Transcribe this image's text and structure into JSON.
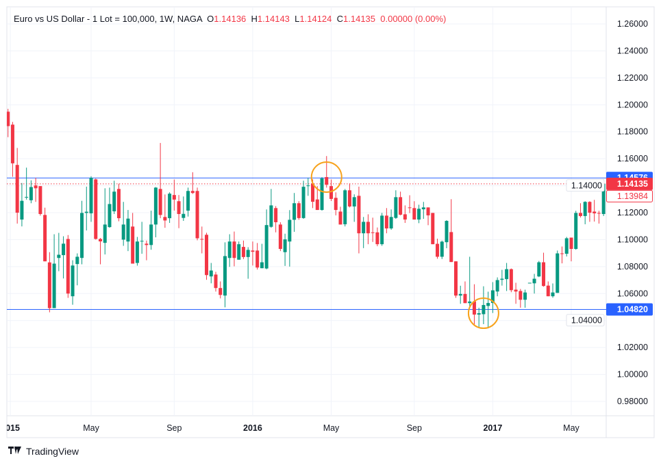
{
  "legend": {
    "title": "Euro vs US Dollar - 1 Lot = 100,000, 1W, NAGA",
    "o_label": "O",
    "o": "1.14136",
    "h_label": "H",
    "h": "1.14143",
    "l_label": "L",
    "l": "1.14124",
    "c_label": "C",
    "c": "1.14135",
    "change": "0.00000 (0.00%)"
  },
  "branding": {
    "logo_text": "TradingView"
  },
  "colors": {
    "up": "#089981",
    "down": "#f23645",
    "level_line": "#2962ff",
    "highlight_circle": "#f7a21b",
    "last_price": "#f23645"
  },
  "chart_data": {
    "type": "candlestick",
    "title": "Euro vs US Dollar - 1 Lot = 100,000, 1W, NAGA",
    "interval": "1W",
    "ylim": [
      0.97,
      1.27
    ],
    "y_ticks": [
      "1.26000",
      "1.24000",
      "1.22000",
      "1.20000",
      "1.18000",
      "1.16000",
      "1.14000",
      "1.12000",
      "1.10000",
      "1.08000",
      "1.06000",
      "1.04000",
      "1.02000",
      "1.00000",
      "0.98000"
    ],
    "x_ticks": [
      "2015",
      "May",
      "Sep",
      "2016",
      "May",
      "Sep",
      "2017",
      "May"
    ],
    "grid": true,
    "horizontal_levels": [
      {
        "value": 1.14576,
        "label": "1.14576"
      },
      {
        "value": 1.0482,
        "label": "1.04820"
      }
    ],
    "last_price": {
      "value": 1.14135,
      "label": "1.14135"
    },
    "secondary_price": {
      "value": 1.13984,
      "label": "1.13984"
    },
    "highlights": [
      {
        "candle": 69,
        "value": 1.1464
      },
      {
        "candle": 103,
        "value": 1.0454
      }
    ],
    "ohlc": [
      [
        1.1949,
        1.197,
        1.176,
        1.1842
      ],
      [
        1.1853,
        1.1873,
        1.1466,
        1.1566
      ],
      [
        1.1554,
        1.168,
        1.1119,
        1.12
      ],
      [
        1.1149,
        1.142,
        1.1098,
        1.1288
      ],
      [
        1.1315,
        1.1534,
        1.1297,
        1.1317
      ],
      [
        1.1292,
        1.144,
        1.127,
        1.139
      ],
      [
        1.1402,
        1.1458,
        1.128,
        1.1381
      ],
      [
        1.1397,
        1.1397,
        1.1178,
        1.119
      ],
      [
        1.1183,
        1.1237,
        1.0839,
        1.0839
      ],
      [
        1.0831,
        1.0907,
        1.0461,
        1.0492
      ],
      [
        1.0492,
        1.104,
        1.0492,
        1.0822
      ],
      [
        1.0864,
        1.105,
        1.0766,
        1.0888
      ],
      [
        1.0885,
        1.1025,
        1.0712,
        1.097
      ],
      [
        1.1005,
        1.1034,
        1.0568,
        1.06
      ],
      [
        1.058,
        1.0847,
        1.0517,
        1.0808
      ],
      [
        1.0819,
        1.0898,
        1.0661,
        1.0873
      ],
      [
        1.0864,
        1.1288,
        1.0817,
        1.1198
      ],
      [
        1.1198,
        1.1393,
        1.1068,
        1.1207
      ],
      [
        1.1195,
        1.147,
        1.1132,
        1.1458
      ],
      [
        1.1447,
        1.1453,
        1.1,
        1.1005
      ],
      [
        1.1005,
        1.1012,
        1.0817,
        1.0987
      ],
      [
        1.0976,
        1.1381,
        1.089,
        1.1112
      ],
      [
        1.1093,
        1.1386,
        1.1088,
        1.1264
      ],
      [
        1.121,
        1.1437,
        1.119,
        1.1356
      ],
      [
        1.1376,
        1.1415,
        1.1136,
        1.1159
      ],
      [
        1.1,
        1.128,
        1.0954,
        1.1112
      ],
      [
        1.0986,
        1.122,
        1.0915,
        1.1156
      ],
      [
        1.1097,
        1.1198,
        1.0822,
        1.0822
      ],
      [
        1.0827,
        1.102,
        1.0807,
        1.0986
      ],
      [
        1.0986,
        1.1132,
        1.0895,
        1.0991
      ],
      [
        1.097,
        1.0993,
        1.0847,
        1.096
      ],
      [
        1.096,
        1.1215,
        1.0925,
        1.1112
      ],
      [
        1.1112,
        1.139,
        1.1017,
        1.1386
      ],
      [
        1.1376,
        1.1717,
        1.1159,
        1.1183
      ],
      [
        1.1168,
        1.1335,
        1.1088,
        1.1142
      ],
      [
        1.1159,
        1.1351,
        1.1124,
        1.1341
      ],
      [
        1.1331,
        1.1446,
        1.1215,
        1.1297
      ],
      [
        1.1285,
        1.1331,
        1.1085,
        1.119
      ],
      [
        1.1161,
        1.132,
        1.1139,
        1.1191
      ],
      [
        1.1215,
        1.1386,
        1.1171,
        1.1361
      ],
      [
        1.1361,
        1.15,
        1.1339,
        1.1346
      ],
      [
        1.1361,
        1.1386,
        1.0995,
        1.101
      ],
      [
        1.1005,
        1.1097,
        1.0898,
        1.1003
      ],
      [
        1.1036,
        1.1051,
        1.0702,
        1.0737
      ],
      [
        1.0727,
        1.0827,
        1.0676,
        1.0771
      ],
      [
        1.0741,
        1.0761,
        1.0615,
        1.0641
      ],
      [
        1.0641,
        1.069,
        1.0564,
        1.059
      ],
      [
        1.0585,
        1.098,
        1.0498,
        1.0878
      ],
      [
        1.0864,
        1.104,
        1.0798,
        1.0986
      ],
      [
        1.0986,
        1.106,
        1.0802,
        1.0864
      ],
      [
        1.0851,
        1.0986,
        1.0851,
        1.0966
      ],
      [
        1.0946,
        1.0993,
        1.0856,
        1.0871
      ],
      [
        1.0871,
        1.0944,
        1.071,
        1.0924
      ],
      [
        1.0919,
        1.0986,
        1.0808,
        1.091
      ],
      [
        1.0919,
        1.0975,
        1.0778,
        1.0793
      ],
      [
        1.0788,
        1.0969,
        1.0788,
        1.0832
      ],
      [
        1.0786,
        1.1224,
        1.078,
        1.1108
      ],
      [
        1.1095,
        1.1376,
        1.1088,
        1.1254
      ],
      [
        1.1234,
        1.1249,
        1.1054,
        1.1129
      ],
      [
        1.1112,
        1.1129,
        1.0915,
        1.0931
      ],
      [
        1.0907,
        1.1044,
        1.0805,
        1.1002
      ],
      [
        1.0986,
        1.1219,
        1.08,
        1.1147
      ],
      [
        1.1147,
        1.1346,
        1.1058,
        1.127
      ],
      [
        1.127,
        1.1285,
        1.1147,
        1.116
      ],
      [
        1.116,
        1.1437,
        1.1154,
        1.1392
      ],
      [
        1.1398,
        1.1458,
        1.1325,
        1.1402
      ],
      [
        1.1417,
        1.1447,
        1.1234,
        1.1281
      ],
      [
        1.1298,
        1.1397,
        1.122,
        1.122
      ],
      [
        1.122,
        1.1464,
        1.1215,
        1.1454
      ],
      [
        1.1464,
        1.162,
        1.1386,
        1.1407
      ],
      [
        1.1397,
        1.1446,
        1.1286,
        1.1302
      ],
      [
        1.131,
        1.1351,
        1.118,
        1.122
      ],
      [
        1.1208,
        1.1244,
        1.1112,
        1.1112
      ],
      [
        1.1114,
        1.1376,
        1.1098,
        1.1366
      ],
      [
        1.1366,
        1.1417,
        1.1239,
        1.1246
      ],
      [
        1.1246,
        1.1336,
        1.1132,
        1.1315
      ],
      [
        1.1325,
        1.1393,
        1.0898,
        1.1047
      ],
      [
        1.1047,
        1.1168,
        1.0937,
        1.1132
      ],
      [
        1.1132,
        1.1188,
        1.0966,
        1.1047
      ],
      [
        1.1054,
        1.1163,
        1.0983,
        1.1051
      ],
      [
        1.1054,
        1.109,
        1.0951,
        1.0966
      ],
      [
        1.0966,
        1.1198,
        1.0954,
        1.1178
      ],
      [
        1.1178,
        1.1234,
        1.1047,
        1.1083
      ],
      [
        1.1083,
        1.1224,
        1.1073,
        1.1168
      ],
      [
        1.1161,
        1.1366,
        1.1154,
        1.1315
      ],
      [
        1.1315,
        1.1356,
        1.118,
        1.1185
      ],
      [
        1.1188,
        1.1254,
        1.1124,
        1.1149
      ],
      [
        1.1239,
        1.1329,
        1.1197,
        1.1237
      ],
      [
        1.1234,
        1.1285,
        1.1149,
        1.1149
      ],
      [
        1.1149,
        1.1259,
        1.1122,
        1.1229
      ],
      [
        1.1225,
        1.128,
        1.1154,
        1.1239
      ],
      [
        1.1239,
        1.1239,
        1.1107,
        1.118
      ],
      [
        1.1198,
        1.1198,
        1.0966,
        1.0966
      ],
      [
        1.0969,
        1.1007,
        1.0858,
        1.0873
      ],
      [
        1.0873,
        1.0993,
        1.0856,
        1.0985
      ],
      [
        1.0981,
        1.1144,
        1.0936,
        1.1139
      ],
      [
        1.1056,
        1.13,
        1.0834,
        1.0834
      ],
      [
        1.0839,
        1.0839,
        1.0568,
        1.0585
      ],
      [
        1.0585,
        1.0658,
        1.0524,
        1.0597
      ],
      [
        1.0597,
        1.069,
        1.0529,
        1.0529
      ],
      [
        1.0529,
        1.0873,
        1.0503,
        1.0541
      ],
      [
        1.0542,
        1.0669,
        1.0364,
        1.0444
      ],
      [
        1.0444,
        1.0495,
        1.0353,
        1.0454
      ],
      [
        1.0447,
        1.0654,
        1.0373,
        1.0515
      ],
      [
        1.0508,
        1.0614,
        1.0342,
        1.053
      ],
      [
        1.053,
        1.0685,
        1.0456,
        1.0624
      ],
      [
        1.0615,
        1.072,
        1.058,
        1.07
      ],
      [
        1.0702,
        1.0776,
        1.0659,
        1.071
      ],
      [
        1.0707,
        1.0827,
        1.0619,
        1.0781
      ],
      [
        1.0781,
        1.0786,
        1.061,
        1.0625
      ],
      [
        1.0629,
        1.068,
        1.0524,
        1.0615
      ],
      [
        1.0619,
        1.0634,
        1.0495,
        1.0554
      ],
      [
        1.0554,
        1.0629,
        1.0495,
        1.0608
      ],
      [
        1.0678,
        1.068,
        1.0676,
        1.068
      ],
      [
        1.0676,
        1.0746,
        1.06,
        1.071
      ],
      [
        1.0727,
        1.0842,
        1.0722,
        1.0832
      ],
      [
        1.0832,
        1.0903,
        1.0651,
        1.0656
      ],
      [
        1.0659,
        1.069,
        1.058,
        1.058
      ],
      [
        1.058,
        1.0675,
        1.0569,
        1.0608
      ],
      [
        1.0605,
        1.0919,
        1.0605,
        1.0898
      ],
      [
        1.0898,
        1.0949,
        1.0824,
        1.0893
      ],
      [
        1.0895,
        1.102,
        1.0875,
        1.101
      ],
      [
        1.1015,
        1.1015,
        1.0839,
        1.0931
      ],
      [
        1.0931,
        1.1214,
        1.0925,
        1.1198
      ],
      [
        1.1198,
        1.127,
        1.1164,
        1.1175
      ],
      [
        1.1175,
        1.1285,
        1.1114,
        1.128
      ],
      [
        1.128,
        1.1285,
        1.1132,
        1.12
      ],
      [
        1.1208,
        1.1295,
        1.1134,
        1.1195
      ],
      [
        1.1198,
        1.1214,
        1.1119,
        1.1195
      ],
      [
        1.119,
        1.1447,
        1.1175,
        1.14135
      ]
    ]
  }
}
